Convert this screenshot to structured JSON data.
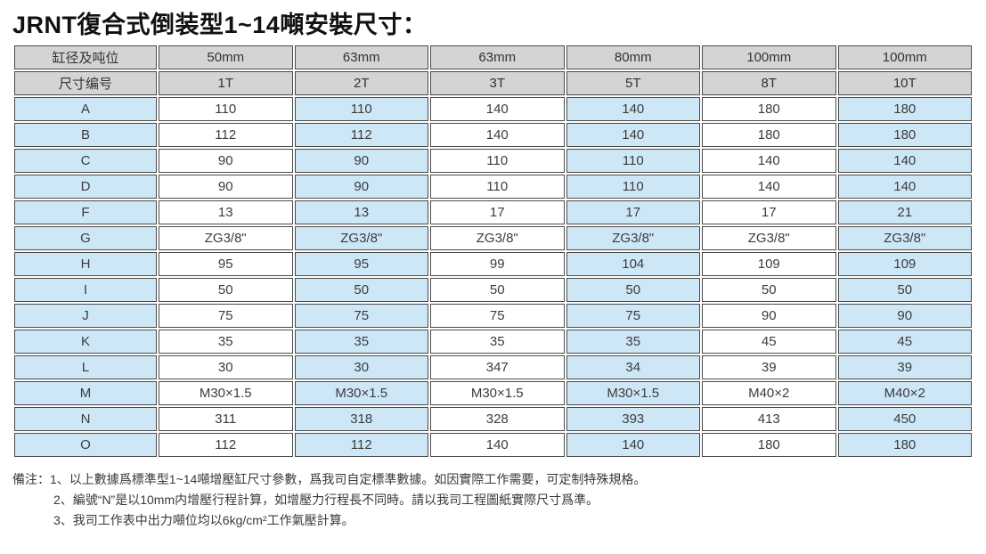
{
  "title": "JRNT復合式倒装型1~14噸安裝尺寸：",
  "colors": {
    "header_bg": "#d4d4d4",
    "blue_bg": "#cde7f7",
    "white_bg": "#ffffff",
    "border": "#4a4a4a",
    "text": "#3c3c3c"
  },
  "table": {
    "header_rows": [
      {
        "label": "缸径及吨位",
        "values": [
          "50mm",
          "63mm",
          "63mm",
          "80mm",
          "100mm",
          "100mm"
        ]
      },
      {
        "label": "尺寸编号",
        "values": [
          "1T",
          "2T",
          "3T",
          "5T",
          "8T",
          "10T"
        ]
      }
    ],
    "rows": [
      {
        "label": "A",
        "values": [
          "110",
          "110",
          "140",
          "140",
          "180",
          "180"
        ]
      },
      {
        "label": "B",
        "values": [
          "112",
          "112",
          "140",
          "140",
          "180",
          "180"
        ]
      },
      {
        "label": "C",
        "values": [
          "90",
          "90",
          "110",
          "110",
          "140",
          "140"
        ]
      },
      {
        "label": "D",
        "values": [
          "90",
          "90",
          "110",
          "110",
          "140",
          "140"
        ]
      },
      {
        "label": "F",
        "values": [
          "13",
          "13",
          "17",
          "17",
          "17",
          "21"
        ]
      },
      {
        "label": "G",
        "values": [
          "ZG3/8\"",
          "ZG3/8\"",
          "ZG3/8\"",
          "ZG3/8\"",
          "ZG3/8\"",
          "ZG3/8\""
        ]
      },
      {
        "label": "H",
        "values": [
          "95",
          "95",
          "99",
          "104",
          "109",
          "109"
        ]
      },
      {
        "label": "I",
        "values": [
          "50",
          "50",
          "50",
          "50",
          "50",
          "50"
        ]
      },
      {
        "label": "J",
        "values": [
          "75",
          "75",
          "75",
          "75",
          "90",
          "90"
        ]
      },
      {
        "label": "K",
        "values": [
          "35",
          "35",
          "35",
          "35",
          "45",
          "45"
        ]
      },
      {
        "label": "L",
        "values": [
          "30",
          "30",
          "347",
          "34",
          "39",
          "39"
        ]
      },
      {
        "label": "M",
        "values": [
          "M30×1.5",
          "M30×1.5",
          "M30×1.5",
          "M30×1.5",
          "M40×2",
          "M40×2"
        ]
      },
      {
        "label": "N",
        "values": [
          "311",
          "318",
          "328",
          "393",
          "413",
          "450"
        ]
      },
      {
        "label": "O",
        "values": [
          "112",
          "112",
          "140",
          "140",
          "180",
          "180"
        ]
      }
    ]
  },
  "notes": {
    "prefix": "備注：",
    "items": [
      "1、以上數據爲標準型1~14噸增壓缸尺寸參數，爲我司自定標準數據。如因實際工作需要，可定制特殊規格。",
      "2、編號“N”是以10mm内增壓行程計算，如增壓力行程長不同時。請以我司工程圖紙實際尺寸爲準。",
      "3、我司工作表中出力噸位均以6kg/cm²工作氣壓計算。"
    ]
  }
}
